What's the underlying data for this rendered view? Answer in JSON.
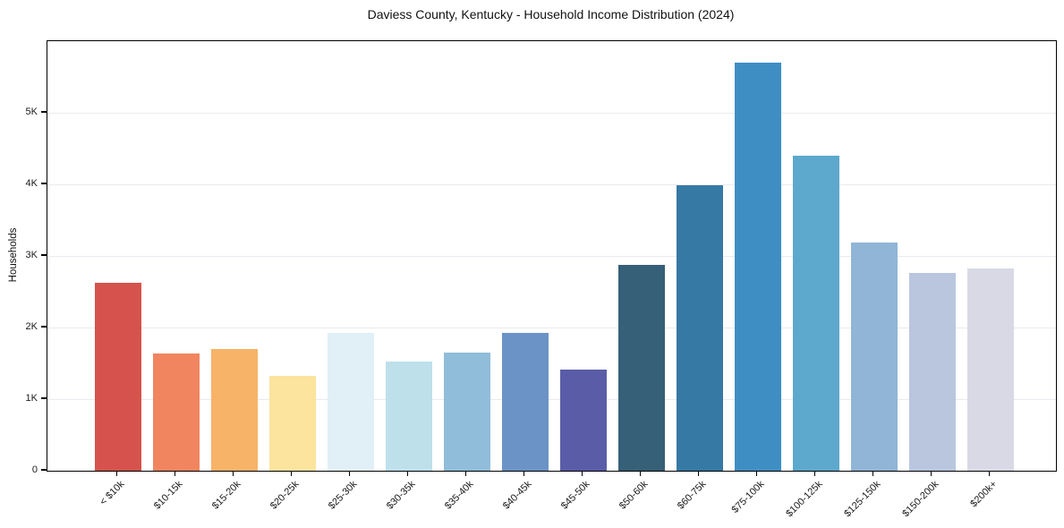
{
  "chart_data": {
    "type": "bar",
    "title": "Daviess County, Kentucky - Household Income Distribution (2024)",
    "xlabel": "",
    "ylabel": "Households",
    "categories": [
      "< $10k",
      "$10-15k",
      "$15-20k",
      "$20-25k",
      "$25-30k",
      "$30-35k",
      "$35-40k",
      "$40-45k",
      "$45-50k",
      "$50-60k",
      "$60-75k",
      "$75-100k",
      "$100-125k",
      "$125-150k",
      "$150-200k",
      "$200k+"
    ],
    "values": [
      2630,
      1640,
      1700,
      1330,
      1930,
      1530,
      1650,
      1930,
      1410,
      2870,
      3990,
      5700,
      4400,
      3190,
      2760,
      2830
    ],
    "bar_colors": [
      "#d5534c",
      "#f08560",
      "#f7b368",
      "#fce49e",
      "#e1f0f6",
      "#bde0eb",
      "#90bdd9",
      "#6b93c6",
      "#5a5ca8",
      "#365f78",
      "#3579a4",
      "#3e8ec4",
      "#5da8cd",
      "#90b5d6",
      "#b9c6de",
      "#d8d9e5"
    ],
    "ylim": [
      0,
      6000
    ],
    "yticks": [
      {
        "value": 0,
        "label": "0"
      },
      {
        "value": 1000,
        "label": "1K"
      },
      {
        "value": 2000,
        "label": "2K"
      },
      {
        "value": 3000,
        "label": "3K"
      },
      {
        "value": 4000,
        "label": "4K"
      },
      {
        "value": 5000,
        "label": "5K"
      }
    ],
    "grid": "horizontal",
    "legend_position": "none"
  },
  "style": {
    "background": "#ffffff",
    "spine_color": "#000000",
    "grid_color": "#eaeaf0",
    "text_color": "#1a1a1a"
  }
}
